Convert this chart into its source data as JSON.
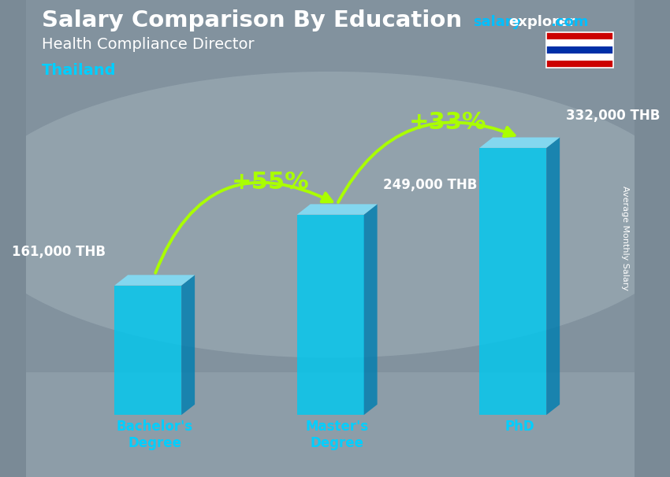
{
  "title": "Salary Comparison By Education",
  "subtitle_job": "Health Compliance Director",
  "subtitle_loc": "Thailand",
  "categories": [
    "Bachelor's\nDegree",
    "Master's\nDegree",
    "PhD"
  ],
  "values": [
    161000,
    249000,
    332000
  ],
  "value_labels": [
    "161,000 THB",
    "249,000 THB",
    "332,000 THB"
  ],
  "pct_labels": [
    "+55%",
    "+33%"
  ],
  "bar_color_face": "#00C8F0",
  "bar_color_side": "#007EB0",
  "bar_color_top": "#80E4FF",
  "bar_alpha": 0.82,
  "title_color": "#FFFFFF",
  "subtitle_job_color": "#FFFFFF",
  "subtitle_loc_color": "#00CFFF",
  "value_label_color": "#FFFFFF",
  "pct_label_color": "#AAFF00",
  "arrow_color": "#AAFF00",
  "xlabel_color": "#00CFFF",
  "brand_salary_color": "#00BFFF",
  "brand_explorer_color": "#FFFFFF",
  "brand_com_color": "#00BFFF",
  "bg_color": "#7A8A96",
  "figsize": [
    8.5,
    6.06
  ],
  "dpi": 100,
  "flag_stripes": [
    "#CC0001",
    "#FFFFFF",
    "#002FA7",
    "#FFFFFF",
    "#CC0001"
  ]
}
